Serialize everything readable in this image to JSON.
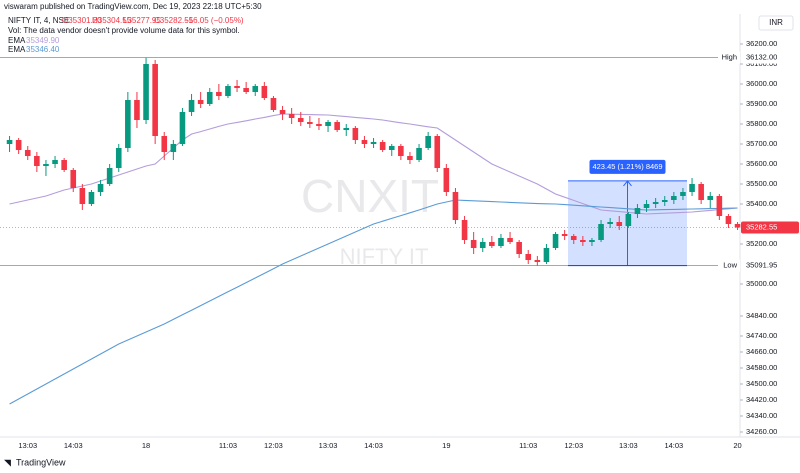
{
  "header": {
    "published": "viswaram published on TradingView.com, Dec 19, 2023 22:18 UTC+5:30",
    "symbol": "NIFTY IT, 4, NSE",
    "ohlc": [
      "O35301.20",
      "H35304.55",
      "L35277.95",
      "C35282.55",
      "−16.05 (−0.05%)"
    ],
    "volume_note": "Vol: The data vendor doesn't provide volume data for this symbol.",
    "currency": "INR",
    "brand": "TradingView"
  },
  "watermark": {
    "ticker": "CNXIT",
    "name": "NIFTY IT"
  },
  "chart_data": {
    "type": "candlestick",
    "categories": [
      null,
      null,
      "13:03",
      null,
      null,
      null,
      null,
      "14:03",
      null,
      null,
      null,
      null,
      null,
      null,
      null,
      "18",
      null,
      null,
      null,
      null,
      null,
      null,
      null,
      null,
      "11:03",
      null,
      null,
      null,
      null,
      "12:03",
      null,
      null,
      null,
      null,
      null,
      "13:03",
      null,
      null,
      null,
      null,
      "14:03",
      null,
      null,
      null,
      null,
      null,
      null,
      null,
      "19",
      null,
      null,
      null,
      null,
      null,
      null,
      null,
      null,
      "11:03",
      null,
      null,
      null,
      null,
      "12:03",
      null,
      null,
      null,
      null,
      null,
      "13:03",
      null,
      null,
      null,
      null,
      "14:03",
      null,
      null,
      null,
      null,
      null,
      null,
      "20"
    ],
    "candles": {
      "open": [
        35700,
        35720,
        35670,
        35640,
        35590,
        35600,
        35620,
        35570,
        35480,
        35400,
        35460,
        35500,
        35580,
        35680,
        35920,
        35820,
        36100,
        35740,
        35660,
        35700,
        35860,
        35920,
        35900,
        35960,
        35940,
        35990,
        35980,
        35960,
        35990,
        35930,
        35870,
        35850,
        35830,
        35810,
        35800,
        35790,
        35810,
        35770,
        35780,
        35720,
        35700,
        35710,
        35670,
        35690,
        35640,
        35620,
        35680,
        35740,
        35580,
        35460,
        35320,
        35220,
        35180,
        35210,
        35190,
        35230,
        35210,
        35150,
        35120,
        35110,
        35180,
        35250,
        35240,
        35220,
        35210,
        35220,
        35300,
        35310,
        35290,
        35350,
        35380,
        35400,
        35410,
        35420,
        35440,
        35460,
        35500,
        35420,
        35440,
        35340,
        35300
      ],
      "high": [
        35740,
        35730,
        35690,
        35660,
        35620,
        35640,
        35630,
        35580,
        35500,
        35470,
        35520,
        35600,
        35700,
        35960,
        35960,
        36132,
        36120,
        35760,
        35720,
        35880,
        35950,
        35960,
        35980,
        36000,
        36000,
        36020,
        36010,
        36000,
        36010,
        35940,
        35890,
        35880,
        35860,
        35840,
        35830,
        35820,
        35820,
        35800,
        35790,
        35740,
        35730,
        35720,
        35700,
        35700,
        35660,
        35700,
        35760,
        35750,
        35600,
        35480,
        35340,
        35260,
        35230,
        35240,
        35250,
        35260,
        35220,
        35170,
        35140,
        35200,
        35260,
        35270,
        35250,
        35240,
        35230,
        35320,
        35330,
        35340,
        35360,
        35400,
        35420,
        35430,
        35440,
        35460,
        35480,
        35530,
        35510,
        35460,
        35450,
        35350,
        35310
      ],
      "low": [
        35660,
        35650,
        35620,
        35560,
        35540,
        35580,
        35560,
        35460,
        35370,
        35390,
        35440,
        35490,
        35560,
        35660,
        35780,
        35800,
        35700,
        35620,
        35620,
        35690,
        35840,
        35880,
        35890,
        35920,
        35930,
        35960,
        35950,
        35940,
        35920,
        35860,
        35820,
        35800,
        35790,
        35780,
        35770,
        35760,
        35760,
        35740,
        35700,
        35680,
        35680,
        35660,
        35640,
        35620,
        35600,
        35610,
        35670,
        35560,
        35440,
        35300,
        35200,
        35150,
        35160,
        35180,
        35180,
        35200,
        35130,
        35100,
        35091.95,
        35100,
        35170,
        35220,
        35200,
        35190,
        35190,
        35210,
        35280,
        35270,
        35280,
        35330,
        35360,
        35380,
        35390,
        35400,
        35420,
        35440,
        35400,
        35380,
        35320,
        35280,
        35270
      ],
      "close": [
        35720,
        35670,
        35640,
        35590,
        35600,
        35620,
        35570,
        35480,
        35400,
        35460,
        35500,
        35580,
        35680,
        35920,
        35820,
        36100,
        35740,
        35660,
        35700,
        35860,
        35920,
        35900,
        35960,
        35940,
        35990,
        35980,
        35960,
        35990,
        35930,
        35870,
        35850,
        35830,
        35810,
        35800,
        35790,
        35810,
        35770,
        35780,
        35720,
        35700,
        35710,
        35670,
        35690,
        35640,
        35620,
        35680,
        35740,
        35580,
        35460,
        35320,
        35220,
        35180,
        35210,
        35190,
        35230,
        35210,
        35150,
        35120,
        35110,
        35180,
        35250,
        35240,
        35220,
        35210,
        35220,
        35300,
        35310,
        35290,
        35350,
        35380,
        35400,
        35410,
        35420,
        35440,
        35460,
        35500,
        35420,
        35440,
        35340,
        35300,
        35282.55
      ],
      "up_color": "#089981",
      "down_color": "#f23645"
    },
    "series": [
      {
        "name": "EMA",
        "color": "#b39ddb",
        "last_label": "35349.90",
        "values": [
          35400,
          35410,
          35420,
          35430,
          35440,
          35455,
          35470,
          35480,
          35490,
          35500,
          35515,
          35530,
          35545,
          35560,
          35575,
          35590,
          35600,
          35640,
          35680,
          35720,
          35750,
          35762,
          35775,
          35788,
          35800,
          35808,
          35816,
          35825,
          35833,
          35842,
          35850,
          35849,
          35848,
          35847,
          35846,
          35845,
          35841,
          35837,
          35833,
          35829,
          35825,
          35820,
          35813,
          35806,
          35800,
          35793,
          35786,
          35780,
          35750,
          35720,
          35690,
          35660,
          35630,
          35600,
          35580,
          35560,
          35540,
          35520,
          35500,
          35475,
          35450,
          35434,
          35418,
          35402,
          35386,
          35370,
          35366,
          35362,
          35358,
          35354,
          35350,
          35352,
          35354,
          35356,
          35358,
          35360,
          35364,
          35368,
          35372,
          35376,
          35380
        ]
      },
      {
        "name": "EMA",
        "color": "#5b9bd5",
        "last_label": "35346.40",
        "values": [
          34400,
          34425,
          34450,
          34475,
          34500,
          34525,
          34550,
          34575,
          34600,
          34625,
          34650,
          34675,
          34700,
          34720,
          34740,
          34760,
          34780,
          34800,
          34823,
          34846,
          34869,
          34892,
          34915,
          34938,
          34961,
          34984,
          35007,
          35030,
          35053,
          35076,
          35100,
          35120,
          35140,
          35160,
          35180,
          35200,
          35220,
          35240,
          35260,
          35280,
          35300,
          35314,
          35328,
          35342,
          35356,
          35370,
          35385,
          35400,
          35410,
          35420,
          35418,
          35416,
          35414,
          35412,
          35410,
          35408,
          35406,
          35404,
          35402,
          35401,
          35400,
          35397,
          35394,
          35391,
          35388,
          35385,
          35382,
          35379,
          35376,
          35373,
          35370,
          35371,
          35372,
          35373,
          35374,
          35375,
          35376,
          35377,
          35378,
          35379,
          35380
        ]
      }
    ],
    "ylim": [
      34170,
      36420
    ],
    "yticks": [
      {
        "value": 36200,
        "label": "36200.00"
      },
      {
        "value": 36100,
        "label": "36100.00"
      },
      {
        "value": 36000,
        "label": "36000.00"
      },
      {
        "value": 35900,
        "label": "35900.00"
      },
      {
        "value": 35800,
        "label": "35800.00"
      },
      {
        "value": 35700,
        "label": "35700.00"
      },
      {
        "value": 35600,
        "label": "35600.00"
      },
      {
        "value": 35500,
        "label": "35500.00"
      },
      {
        "value": 35400,
        "label": "35400.00"
      },
      {
        "value": 35200,
        "label": "35200.00"
      },
      {
        "value": 35000,
        "label": "35000.00"
      },
      {
        "value": 34840,
        "label": "34840.00"
      },
      {
        "value": 34740,
        "label": "34740.00"
      },
      {
        "value": 34660,
        "label": "34660.00"
      },
      {
        "value": 34580,
        "label": "34580.00"
      },
      {
        "value": 34500,
        "label": "34500.00"
      },
      {
        "value": 34420,
        "label": "34420.00"
      },
      {
        "value": 34340,
        "label": "34340.00"
      },
      {
        "value": 34260,
        "label": "34260.00"
      }
    ],
    "price_lines": [
      {
        "name": "High",
        "value": 36132,
        "label": "36132.00",
        "color": "#131722"
      },
      {
        "value": 35282.55,
        "label": "35282.55",
        "color": "#f23645"
      },
      {
        "name": "Low",
        "value": 35091.95,
        "label": "35091.95",
        "color": "#131722"
      }
    ],
    "measure": {
      "label": "423.45 (1.21%) 8469",
      "low": 35091.95,
      "high": 35515.4,
      "color": "#2962ff"
    }
  }
}
